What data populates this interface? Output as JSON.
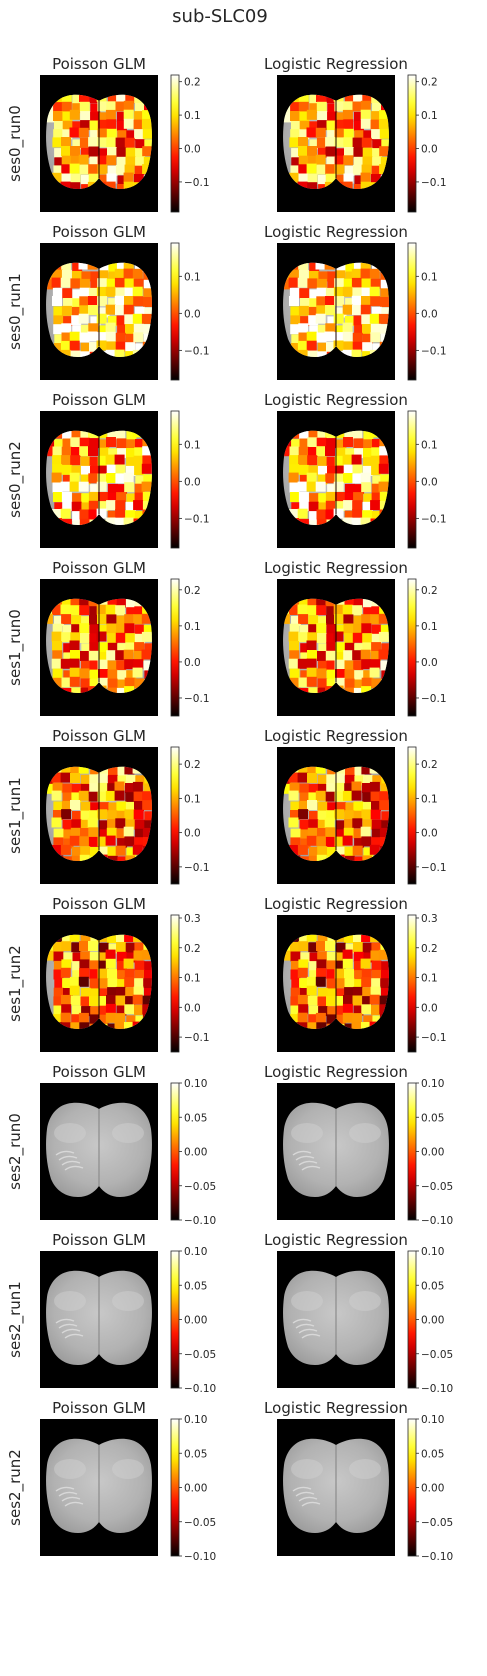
{
  "figure_title": "sub-SLC09",
  "colors": {
    "background": "#ffffff",
    "axes_black": "#000000",
    "gray_brain": "#bdbdbd",
    "text": "#262626",
    "cmap": "hot"
  },
  "chart_data": {
    "type": "heatmap",
    "title": "sub-SLC09",
    "columns": [
      "Poisson GLM",
      "Logistic Regression"
    ],
    "rows": [
      {
        "label": "ses0_run0",
        "has_parcels": true,
        "seed": 11,
        "bias": 0.0,
        "vmin": -0.19,
        "vmax": 0.22,
        "ticks": [
          0.2,
          0.1,
          0.0,
          -0.1
        ],
        "tick_labels": [
          "0.2",
          "0.1",
          "0.0",
          "−0.1"
        ]
      },
      {
        "label": "ses0_run1",
        "has_parcels": true,
        "seed": 23,
        "bias": 0.12,
        "vmin": -0.18,
        "vmax": 0.19,
        "ticks": [
          0.1,
          0.0,
          -0.1
        ],
        "tick_labels": [
          "0.1",
          "0.0",
          "−0.1"
        ]
      },
      {
        "label": "ses0_run2",
        "has_parcels": true,
        "seed": 37,
        "bias": 0.05,
        "vmin": -0.18,
        "vmax": 0.19,
        "ticks": [
          0.1,
          0.0,
          -0.1
        ],
        "tick_labels": [
          "0.1",
          "0.0",
          "−0.1"
        ]
      },
      {
        "label": "ses1_run0",
        "has_parcels": true,
        "seed": 41,
        "bias": -0.02,
        "vmin": -0.15,
        "vmax": 0.23,
        "ticks": [
          0.2,
          0.1,
          0.0,
          -0.1
        ],
        "tick_labels": [
          "0.2",
          "0.1",
          "0.0",
          "−0.1"
        ]
      },
      {
        "label": "ses1_run1",
        "has_parcels": true,
        "seed": 53,
        "bias": -0.06,
        "vmin": -0.15,
        "vmax": 0.25,
        "ticks": [
          0.2,
          0.1,
          0.0,
          -0.1
        ],
        "tick_labels": [
          "0.2",
          "0.1",
          "0.0",
          "−0.1"
        ]
      },
      {
        "label": "ses1_run2",
        "has_parcels": true,
        "seed": 67,
        "bias": -0.1,
        "vmin": -0.15,
        "vmax": 0.31,
        "ticks": [
          0.3,
          0.2,
          0.1,
          0.0,
          -0.1
        ],
        "tick_labels": [
          "0.3",
          "0.2",
          "0.1",
          "0.0",
          "−0.1"
        ]
      },
      {
        "label": "ses2_run0",
        "has_parcels": false,
        "seed": 0,
        "bias": 0.0,
        "vmin": -0.1,
        "vmax": 0.1,
        "ticks": [
          0.1,
          0.05,
          0.0,
          -0.05,
          -0.1
        ],
        "tick_labels": [
          "0.10",
          "0.05",
          "0.00",
          "−0.05",
          "−0.10"
        ]
      },
      {
        "label": "ses2_run1",
        "has_parcels": false,
        "seed": 0,
        "bias": 0.0,
        "vmin": -0.1,
        "vmax": 0.1,
        "ticks": [
          0.1,
          0.05,
          0.0,
          -0.05,
          -0.1
        ],
        "tick_labels": [
          "0.10",
          "0.05",
          "0.00",
          "−0.05",
          "−0.10"
        ]
      },
      {
        "label": "ses2_run2",
        "has_parcels": false,
        "seed": 0,
        "bias": 0.0,
        "vmin": -0.1,
        "vmax": 0.1,
        "ticks": [
          0.1,
          0.05,
          0.0,
          -0.05,
          -0.1
        ],
        "tick_labels": [
          "0.10",
          "0.05",
          "0.00",
          "−0.05",
          "−0.10"
        ]
      }
    ]
  }
}
